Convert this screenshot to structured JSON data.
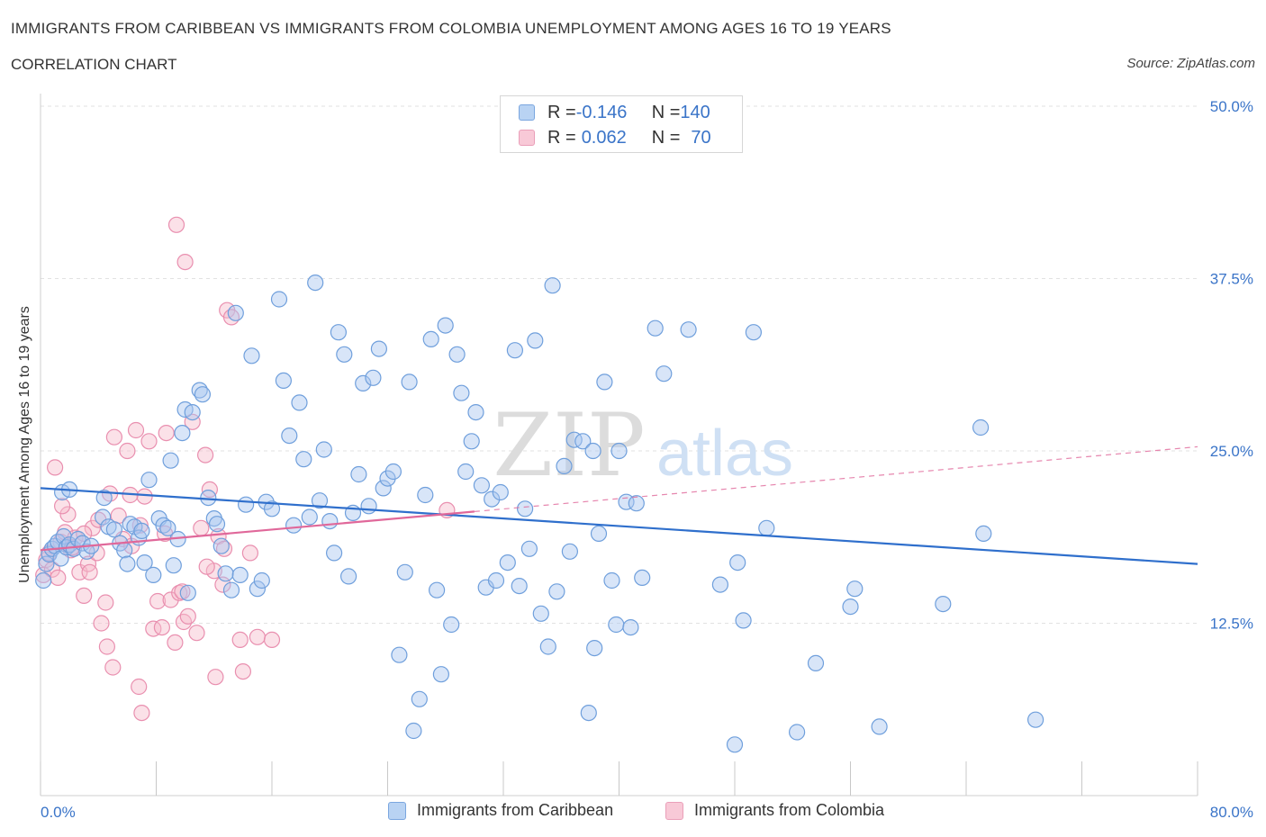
{
  "header": {
    "title": "IMMIGRANTS FROM CARIBBEAN VS IMMIGRANTS FROM COLOMBIA UNEMPLOYMENT AMONG AGES 16 TO 19 YEARS",
    "subtitle": "CORRELATION CHART",
    "source": "Source: ZipAtlas.com"
  },
  "legend": {
    "caribbean": {
      "r_label": "R = ",
      "r_value": "-0.146",
      "n_label": "N = ",
      "n_value": "140"
    },
    "colombia": {
      "r_label": "R = ",
      "r_value": "0.062",
      "n_label": "N = ",
      "n_value": "70"
    }
  },
  "bottom_legend": {
    "caribbean": "Immigrants from Caribbean",
    "colombia": "Immigrants from Colombia"
  },
  "watermark": {
    "zip": "ZIP",
    "atlas": "atlas"
  },
  "colors": {
    "caribbean_fill": "#a8c6ef",
    "caribbean_stroke": "#6f9fdc",
    "caribbean_line": "#2f6fcc",
    "colombia_fill": "#f6bccd",
    "colombia_stroke": "#e98faf",
    "colombia_line": "#e0689a",
    "tick_label": "#3a74c8",
    "grid": "#e2e2e2"
  },
  "chart_data": {
    "type": "scatter",
    "title": "IMMIGRANTS FROM CARIBBEAN VS IMMIGRANTS FROM COLOMBIA UNEMPLOYMENT AMONG AGES 16 TO 19 YEARS",
    "xlabel": "",
    "ylabel": "Unemployment Among Ages 16 to 19 years",
    "xlim": [
      0,
      80
    ],
    "ylim": [
      0,
      50
    ],
    "x_tick_labels": [
      {
        "value": 0,
        "label": "0.0%"
      },
      {
        "value": 80,
        "label": "80.0%"
      }
    ],
    "y_tick_labels": [
      {
        "value": 12.5,
        "label": "12.5%"
      },
      {
        "value": 25,
        "label": "25.0%"
      },
      {
        "value": 37.5,
        "label": "37.5%"
      },
      {
        "value": 50,
        "label": "50.0%"
      }
    ],
    "grid": true,
    "legend_position": "top-center",
    "series": [
      {
        "name": "Immigrants from Caribbean",
        "color": "#6f9fdc",
        "trend": {
          "x": [
            0,
            80
          ],
          "y": [
            22.3,
            16.8
          ],
          "style": "solid"
        },
        "points": [
          [
            0.2,
            15.6
          ],
          [
            0.4,
            16.8
          ],
          [
            0.6,
            17.5
          ],
          [
            0.8,
            17.9
          ],
          [
            1.0,
            18.1
          ],
          [
            1.2,
            18.4
          ],
          [
            1.4,
            17.2
          ],
          [
            1.6,
            18.8
          ],
          [
            1.8,
            18.0
          ],
          [
            2.0,
            18.2
          ],
          [
            2.3,
            17.9
          ],
          [
            2.6,
            18.6
          ],
          [
            2.9,
            18.3
          ],
          [
            3.2,
            17.7
          ],
          [
            3.5,
            18.1
          ],
          [
            1.5,
            22.0
          ],
          [
            2.0,
            22.2
          ],
          [
            4.4,
            21.6
          ],
          [
            4.3,
            20.2
          ],
          [
            4.7,
            19.5
          ],
          [
            5.1,
            19.3
          ],
          [
            5.5,
            18.3
          ],
          [
            5.8,
            17.8
          ],
          [
            6.0,
            16.8
          ],
          [
            6.2,
            19.7
          ],
          [
            6.5,
            19.5
          ],
          [
            6.8,
            18.7
          ],
          [
            7.0,
            19.2
          ],
          [
            7.2,
            16.9
          ],
          [
            7.5,
            22.9
          ],
          [
            7.8,
            16.0
          ],
          [
            8.2,
            20.1
          ],
          [
            8.5,
            19.6
          ],
          [
            8.8,
            19.4
          ],
          [
            9.0,
            24.3
          ],
          [
            9.2,
            16.7
          ],
          [
            9.5,
            18.6
          ],
          [
            9.8,
            26.3
          ],
          [
            10.0,
            28.0
          ],
          [
            10.2,
            14.7
          ],
          [
            10.5,
            27.8
          ],
          [
            11.0,
            29.4
          ],
          [
            11.2,
            29.1
          ],
          [
            11.6,
            21.6
          ],
          [
            12.0,
            20.1
          ],
          [
            12.2,
            19.7
          ],
          [
            12.5,
            18.1
          ],
          [
            12.8,
            16.1
          ],
          [
            13.2,
            14.9
          ],
          [
            13.5,
            35.0
          ],
          [
            13.8,
            16.0
          ],
          [
            14.2,
            21.1
          ],
          [
            14.6,
            31.9
          ],
          [
            15.0,
            15.0
          ],
          [
            15.3,
            15.6
          ],
          [
            15.6,
            21.3
          ],
          [
            16.0,
            20.8
          ],
          [
            16.5,
            36.0
          ],
          [
            16.8,
            30.1
          ],
          [
            17.2,
            26.1
          ],
          [
            17.5,
            19.6
          ],
          [
            17.9,
            28.5
          ],
          [
            18.2,
            24.4
          ],
          [
            18.6,
            20.2
          ],
          [
            19.0,
            37.2
          ],
          [
            19.3,
            21.4
          ],
          [
            19.6,
            25.1
          ],
          [
            20.0,
            19.9
          ],
          [
            20.3,
            17.6
          ],
          [
            20.6,
            33.6
          ],
          [
            21.0,
            32.0
          ],
          [
            21.3,
            15.9
          ],
          [
            21.6,
            20.5
          ],
          [
            22.0,
            23.3
          ],
          [
            22.3,
            29.9
          ],
          [
            22.7,
            21.0
          ],
          [
            23.0,
            30.3
          ],
          [
            23.4,
            32.4
          ],
          [
            23.7,
            22.3
          ],
          [
            24.0,
            23.0
          ],
          [
            24.4,
            23.5
          ],
          [
            24.8,
            10.2
          ],
          [
            25.2,
            16.2
          ],
          [
            25.5,
            30.0
          ],
          [
            25.8,
            4.7
          ],
          [
            26.2,
            7.0
          ],
          [
            26.6,
            21.8
          ],
          [
            27.0,
            33.1
          ],
          [
            27.4,
            14.9
          ],
          [
            27.7,
            8.8
          ],
          [
            28.0,
            34.1
          ],
          [
            28.4,
            12.4
          ],
          [
            28.8,
            32.0
          ],
          [
            29.1,
            29.2
          ],
          [
            29.4,
            23.5
          ],
          [
            29.8,
            25.7
          ],
          [
            30.1,
            27.8
          ],
          [
            30.5,
            22.5
          ],
          [
            30.8,
            15.1
          ],
          [
            31.2,
            21.5
          ],
          [
            31.5,
            15.6
          ],
          [
            31.8,
            22.0
          ],
          [
            32.3,
            16.9
          ],
          [
            32.8,
            32.3
          ],
          [
            33.1,
            15.2
          ],
          [
            33.5,
            20.8
          ],
          [
            33.8,
            17.9
          ],
          [
            34.2,
            33.0
          ],
          [
            34.6,
            13.2
          ],
          [
            35.1,
            10.8
          ],
          [
            35.4,
            37.0
          ],
          [
            35.7,
            14.8
          ],
          [
            36.2,
            23.9
          ],
          [
            36.6,
            17.7
          ],
          [
            36.9,
            25.8
          ],
          [
            37.5,
            25.7
          ],
          [
            37.9,
            6.0
          ],
          [
            38.2,
            25.0
          ],
          [
            38.3,
            10.7
          ],
          [
            38.6,
            19.0
          ],
          [
            39.0,
            30.0
          ],
          [
            39.5,
            15.6
          ],
          [
            39.8,
            12.4
          ],
          [
            40.0,
            25.0
          ],
          [
            40.5,
            21.3
          ],
          [
            40.8,
            12.2
          ],
          [
            41.2,
            21.2
          ],
          [
            41.6,
            15.8
          ],
          [
            42.5,
            33.9
          ],
          [
            43.1,
            30.6
          ],
          [
            44.8,
            33.8
          ],
          [
            47.0,
            15.3
          ],
          [
            48.0,
            3.7
          ],
          [
            48.2,
            16.9
          ],
          [
            48.6,
            12.7
          ],
          [
            49.3,
            33.6
          ],
          [
            50.2,
            19.4
          ],
          [
            52.3,
            4.6
          ],
          [
            53.6,
            9.6
          ],
          [
            56.0,
            13.7
          ],
          [
            56.3,
            15.0
          ],
          [
            58.0,
            5.0
          ],
          [
            62.4,
            13.9
          ],
          [
            65.0,
            26.7
          ],
          [
            65.2,
            19.0
          ],
          [
            68.8,
            5.5
          ]
        ]
      },
      {
        "name": "Immigrants from Colombia",
        "color": "#e98faf",
        "trend": {
          "x": [
            0,
            30
          ],
          "y": [
            17.8,
            20.6
          ],
          "style": "solid",
          "extended": {
            "x": [
              30,
              80
            ],
            "y": [
              20.6,
              25.3
            ],
            "style": "dashed"
          }
        },
        "points": [
          [
            0.2,
            16.0
          ],
          [
            0.4,
            17.1
          ],
          [
            0.6,
            17.6
          ],
          [
            0.8,
            16.4
          ],
          [
            1.0,
            23.8
          ],
          [
            1.2,
            15.8
          ],
          [
            1.4,
            18.4
          ],
          [
            1.7,
            19.1
          ],
          [
            1.9,
            20.4
          ],
          [
            2.1,
            17.8
          ],
          [
            2.4,
            18.7
          ],
          [
            2.7,
            16.2
          ],
          [
            3.0,
            14.5
          ],
          [
            3.3,
            16.8
          ],
          [
            3.6,
            19.4
          ],
          [
            3.9,
            17.6
          ],
          [
            4.2,
            12.5
          ],
          [
            4.5,
            14.0
          ],
          [
            4.8,
            21.9
          ],
          [
            5.1,
            26.0
          ],
          [
            5.4,
            20.3
          ],
          [
            5.7,
            18.6
          ],
          [
            6.0,
            25.0
          ],
          [
            6.3,
            18.1
          ],
          [
            6.6,
            26.5
          ],
          [
            6.9,
            19.6
          ],
          [
            7.2,
            21.7
          ],
          [
            7.5,
            25.7
          ],
          [
            7.8,
            12.1
          ],
          [
            8.1,
            14.1
          ],
          [
            8.4,
            12.2
          ],
          [
            8.7,
            26.3
          ],
          [
            9.0,
            14.2
          ],
          [
            9.3,
            11.1
          ],
          [
            9.6,
            14.7
          ],
          [
            9.9,
            12.6
          ],
          [
            10.2,
            13.0
          ],
          [
            10.5,
            27.1
          ],
          [
            10.8,
            11.8
          ],
          [
            11.1,
            19.4
          ],
          [
            11.4,
            24.7
          ],
          [
            11.7,
            22.2
          ],
          [
            12.0,
            16.3
          ],
          [
            12.3,
            18.8
          ],
          [
            12.6,
            15.3
          ],
          [
            12.9,
            35.2
          ],
          [
            13.2,
            34.7
          ],
          [
            13.8,
            11.3
          ],
          [
            14.0,
            9.0
          ],
          [
            15.0,
            11.5
          ],
          [
            16.0,
            11.3
          ],
          [
            4.6,
            10.8
          ],
          [
            5.0,
            9.3
          ],
          [
            6.8,
            7.9
          ],
          [
            7.0,
            6.0
          ],
          [
            10.0,
            38.7
          ],
          [
            9.4,
            41.4
          ],
          [
            12.1,
            8.6
          ],
          [
            14.5,
            17.6
          ],
          [
            2.2,
            18.0
          ],
          [
            3.0,
            19.0
          ],
          [
            4.0,
            20.0
          ],
          [
            6.2,
            21.8
          ],
          [
            8.6,
            19.0
          ],
          [
            9.8,
            14.8
          ],
          [
            11.5,
            16.6
          ],
          [
            12.7,
            17.9
          ],
          [
            3.4,
            16.2
          ],
          [
            1.5,
            21.0
          ],
          [
            28.1,
            20.7
          ]
        ]
      }
    ]
  }
}
